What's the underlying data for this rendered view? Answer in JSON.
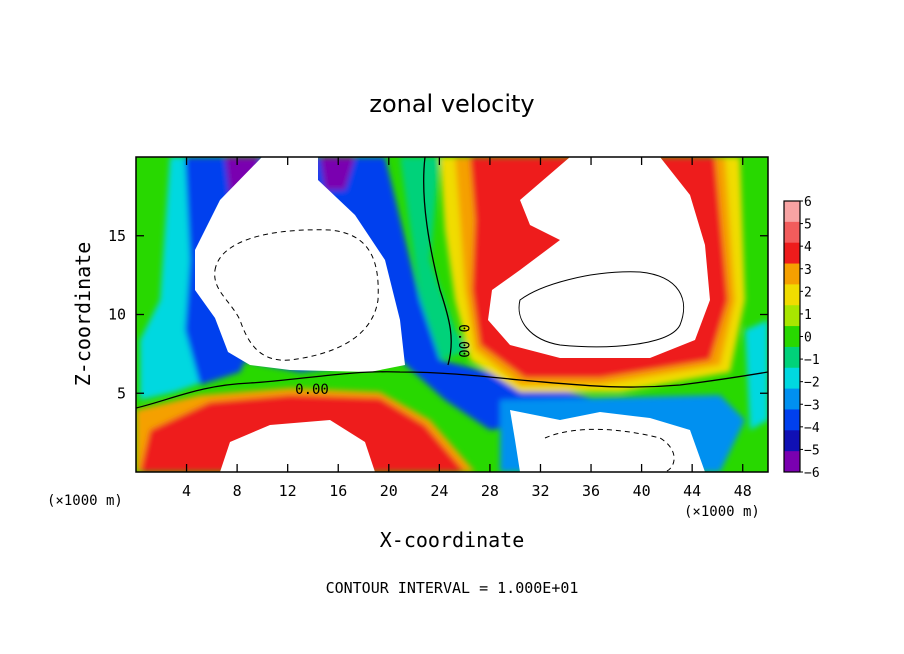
{
  "chart_data": {
    "type": "heatmap",
    "title": "zonal velocity",
    "xlabel": "X-coordinate",
    "ylabel": "Z-coordinate",
    "x_unit_left": "(×1000 m)",
    "x_unit_right": "(×1000 m)",
    "x_ticks": [
      "4",
      "8",
      "12",
      "16",
      "20",
      "24",
      "28",
      "32",
      "36",
      "40",
      "44",
      "48"
    ],
    "x_tick_values": [
      4,
      8,
      12,
      16,
      20,
      24,
      28,
      32,
      36,
      40,
      44,
      48
    ],
    "y_ticks": [
      "5",
      "10",
      "15"
    ],
    "y_tick_values": [
      5,
      10,
      15
    ],
    "xlim": [
      0,
      50
    ],
    "ylim": [
      0,
      20
    ],
    "colorbar": {
      "labels": [
        "6",
        "5",
        "4",
        "3",
        "2",
        "1",
        "0",
        "−1",
        "−2",
        "−3",
        "−4",
        "−5",
        "−6"
      ],
      "values": [
        6,
        5,
        4,
        3,
        2,
        1,
        0,
        -1,
        -2,
        -3,
        -4,
        -5,
        -6
      ],
      "colors": [
        "#f7a3a3",
        "#f25c5c",
        "#ee1c1c",
        "#f5a000",
        "#f0dc00",
        "#a8e600",
        "#28d800",
        "#00d27a",
        "#00d8e0",
        "#0090f0",
        "#0040ee",
        "#1010b4",
        "#7a00b0"
      ]
    },
    "contour_labels": [
      "0.00",
      "0.00"
    ],
    "footer": "CONTOUR INTERVAL = 1.000E+01"
  }
}
